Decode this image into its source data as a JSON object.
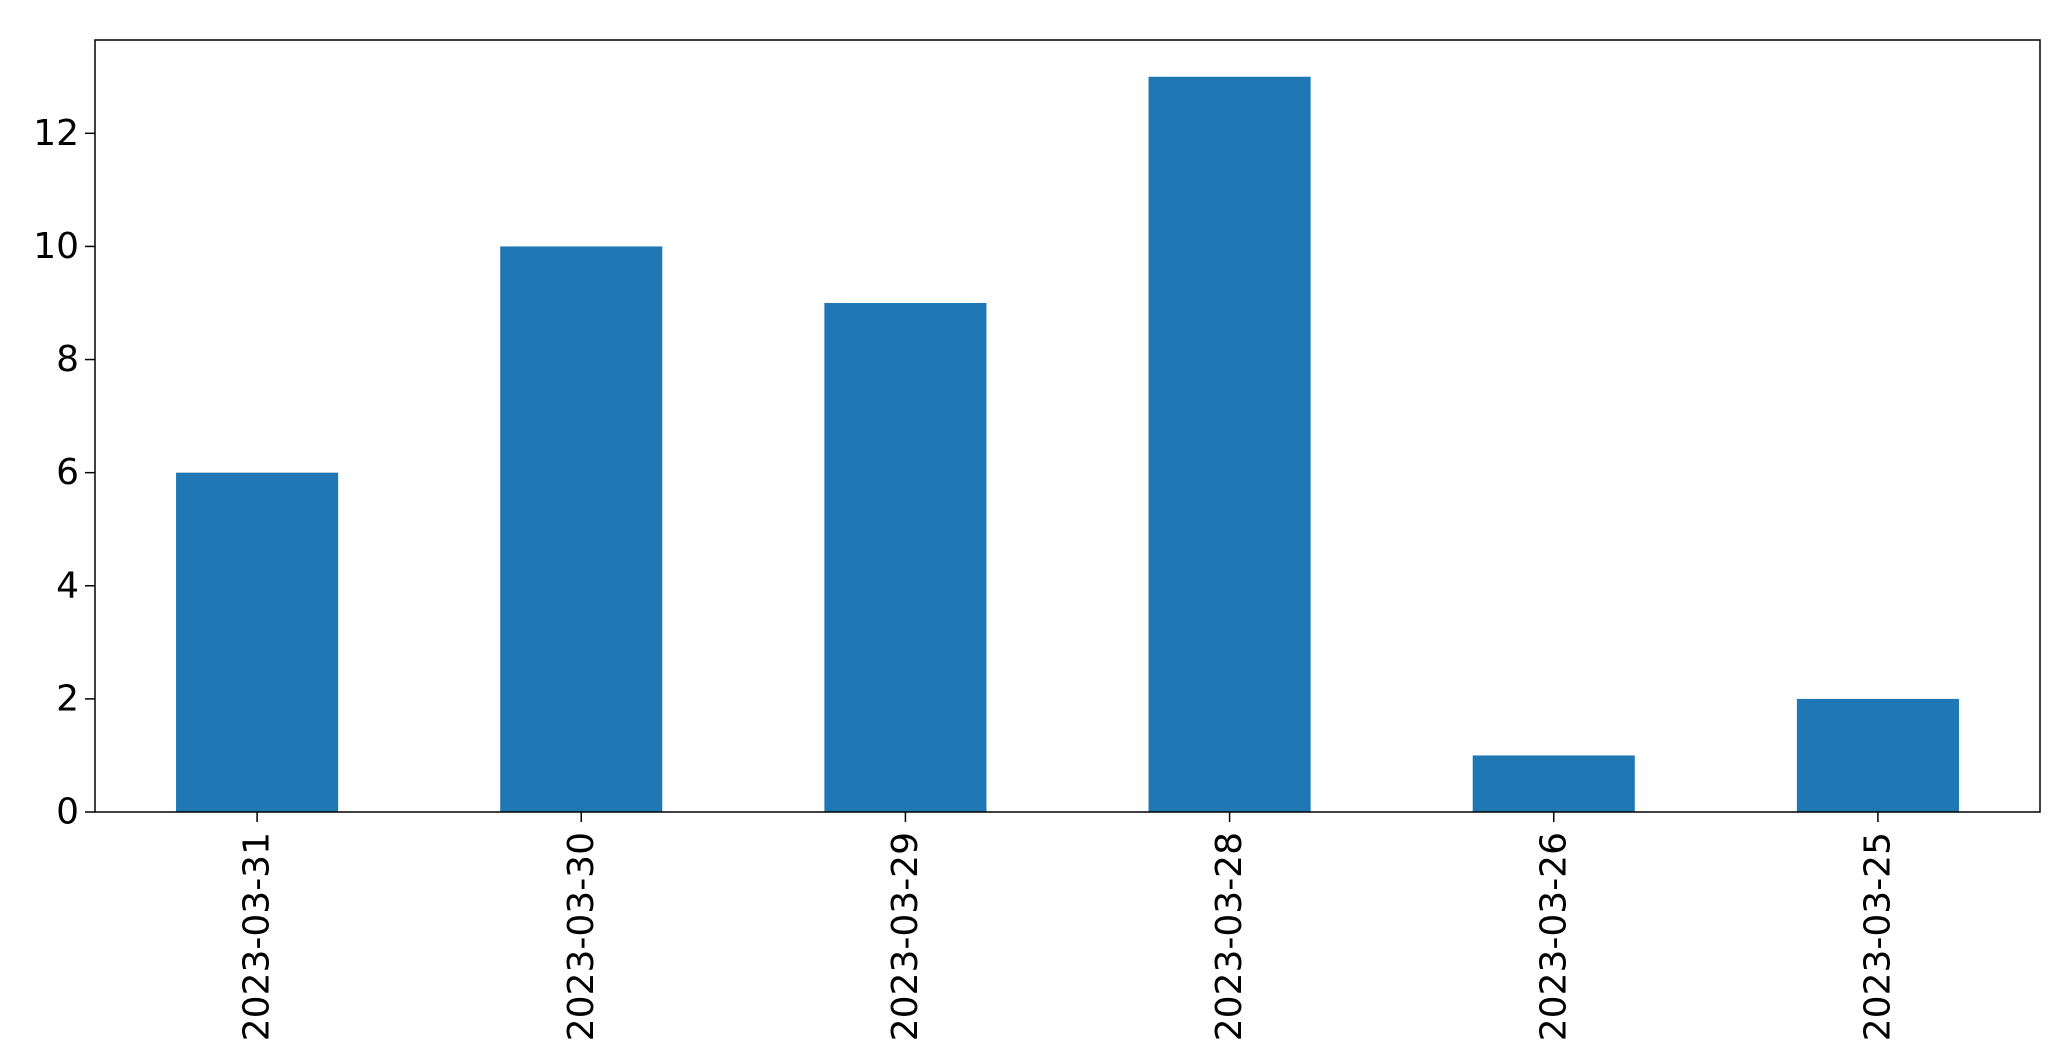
{
  "chart_data": {
    "type": "bar",
    "categories": [
      "2023-03-31",
      "2023-03-30",
      "2023-03-29",
      "2023-03-28",
      "2023-03-26",
      "2023-03-25"
    ],
    "values": [
      6,
      10,
      9,
      13,
      1,
      2
    ],
    "title": "",
    "xlabel": "",
    "ylabel": "",
    "ylim": [
      0,
      13.65
    ],
    "yticks": [
      0,
      2,
      4,
      6,
      8,
      10,
      12
    ],
    "bar_color": "#1f77b4",
    "grid": false,
    "legend": "none"
  }
}
